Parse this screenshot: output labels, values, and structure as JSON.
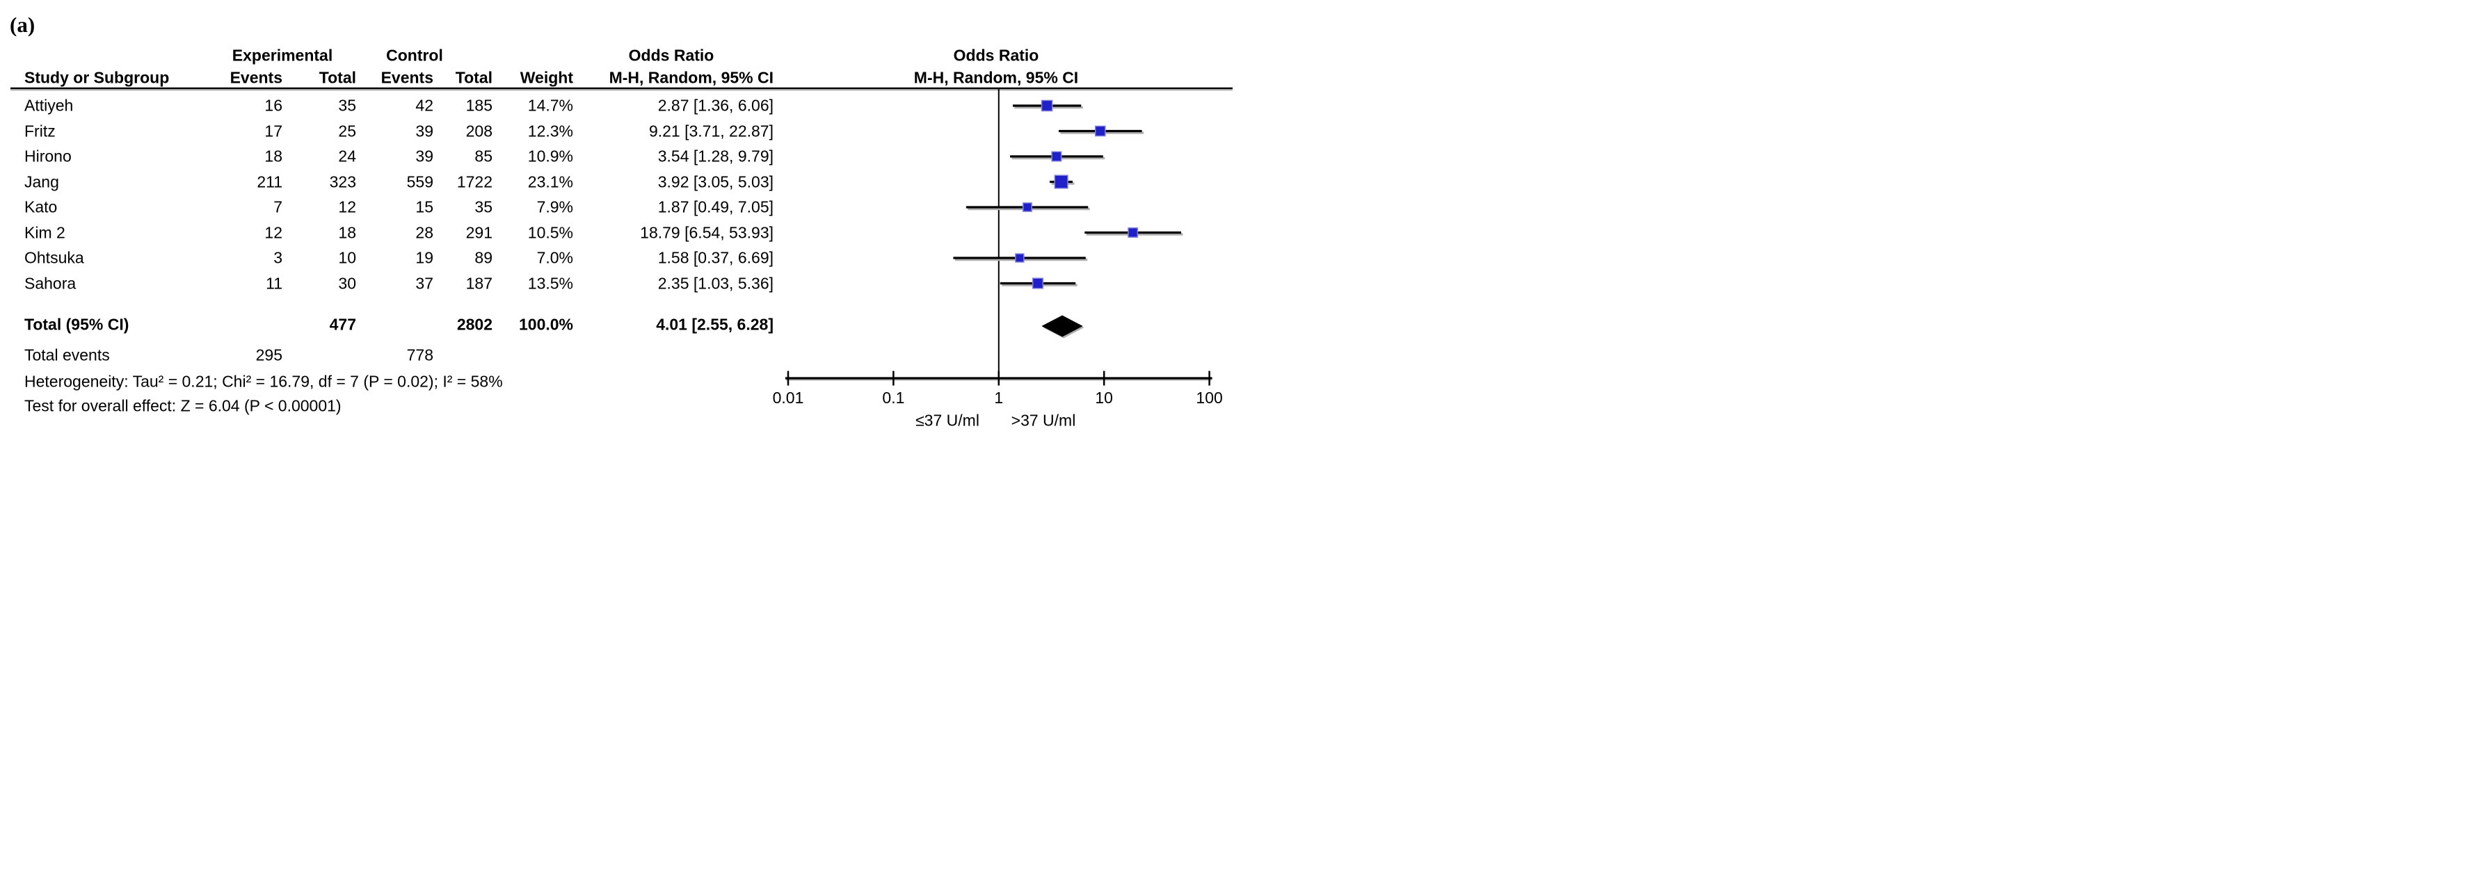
{
  "panel_label": "(a)",
  "table": {
    "group_headers": {
      "experimental": "Experimental",
      "control": "Control",
      "odds_ratio_text": "Odds Ratio",
      "odds_ratio_plot": "Odds Ratio"
    },
    "column_headers": {
      "study": "Study or Subgroup",
      "events_experimental": "Events",
      "total_experimental": "Total",
      "events_control": "Events",
      "total_control": "Total",
      "weight": "Weight",
      "or_ci": "M-H, Random, 95% CI",
      "plot_subheader": "M-H, Random, 95% CI"
    },
    "total_row": {
      "label": "Total (95% CI)",
      "total_experimental": "477",
      "total_control": "2802",
      "weight": "100.0%",
      "or_ci": "4.01 [2.55, 6.28]"
    },
    "total_events_row": {
      "label": "Total events",
      "events_experimental": "295",
      "events_control": "778"
    },
    "heterogeneity": "Heterogeneity: Tau² = 0.21; Chi² = 16.79, df = 7 (P = 0.02); I² = 58%",
    "overall_effect": "Test for overall effect: Z = 6.04 (P < 0.00001)"
  },
  "chart_data": {
    "type": "forest",
    "effect_measure": "Odds Ratio, M-H, Random, 95% CI",
    "x_scale": "log10",
    "xlim": [
      0.01,
      100
    ],
    "axis_ticks": [
      0.01,
      0.1,
      1,
      10,
      100
    ],
    "null_line": 1,
    "axis_left_label": "≤37 U/ml",
    "axis_right_label": ">37 U/ml",
    "marker_color": "#2020C8",
    "marker_halo_color": "#8585DD",
    "diamond_color": "#000000",
    "studies": [
      {
        "study": "Attiyeh",
        "events_experimental": 16,
        "total_experimental": 35,
        "events_control": 42,
        "total_control": 185,
        "weight_pct": 14.7,
        "or": 2.87,
        "ci_low": 1.36,
        "ci_high": 6.06
      },
      {
        "study": "Fritz",
        "events_experimental": 17,
        "total_experimental": 25,
        "events_control": 39,
        "total_control": 208,
        "weight_pct": 12.3,
        "or": 9.21,
        "ci_low": 3.71,
        "ci_high": 22.87
      },
      {
        "study": "Hirono",
        "events_experimental": 18,
        "total_experimental": 24,
        "events_control": 39,
        "total_control": 85,
        "weight_pct": 10.9,
        "or": 3.54,
        "ci_low": 1.28,
        "ci_high": 9.79
      },
      {
        "study": "Jang",
        "events_experimental": 211,
        "total_experimental": 323,
        "events_control": 559,
        "total_control": 1722,
        "weight_pct": 23.1,
        "or": 3.92,
        "ci_low": 3.05,
        "ci_high": 5.03
      },
      {
        "study": "Kato",
        "events_experimental": 7,
        "total_experimental": 12,
        "events_control": 15,
        "total_control": 35,
        "weight_pct": 7.9,
        "or": 1.87,
        "ci_low": 0.49,
        "ci_high": 7.05
      },
      {
        "study": "Kim 2",
        "events_experimental": 12,
        "total_experimental": 18,
        "events_control": 28,
        "total_control": 291,
        "weight_pct": 10.5,
        "or": 18.79,
        "ci_low": 6.54,
        "ci_high": 53.93
      },
      {
        "study": "Ohtsuka",
        "events_experimental": 3,
        "total_experimental": 10,
        "events_control": 19,
        "total_control": 89,
        "weight_pct": 7.0,
        "or": 1.58,
        "ci_low": 0.37,
        "ci_high": 6.69
      },
      {
        "study": "Sahora",
        "events_experimental": 11,
        "total_experimental": 30,
        "events_control": 37,
        "total_control": 187,
        "weight_pct": 13.5,
        "or": 2.35,
        "ci_low": 1.03,
        "ci_high": 5.36
      }
    ],
    "total": {
      "or": 4.01,
      "ci_low": 2.55,
      "ci_high": 6.28
    }
  }
}
